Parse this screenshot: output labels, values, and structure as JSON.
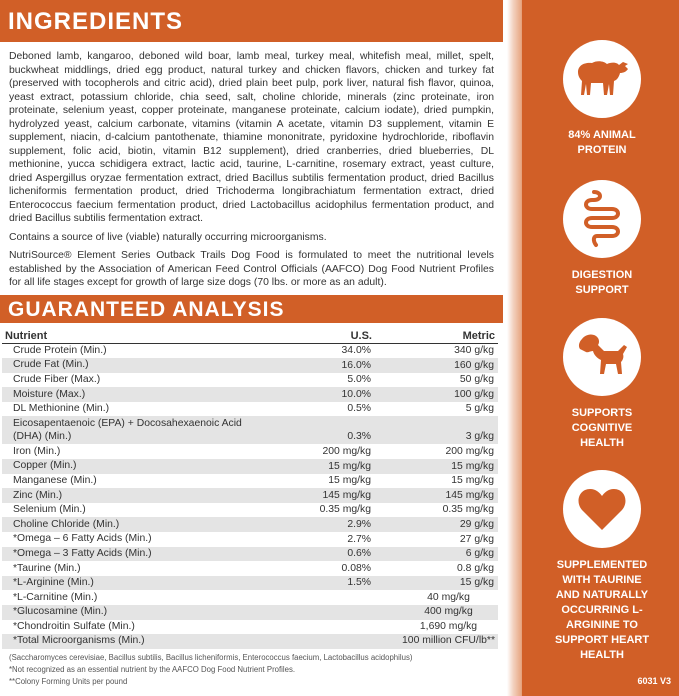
{
  "ingredients": {
    "title": "INGREDIENTS",
    "text": "Deboned lamb, kangaroo, deboned wild boar, lamb meal, turkey meal, whitefish meal, millet, spelt, buckwheat middlings, dried egg product, natural turkey and chicken flavors, chicken and turkey fat (preserved with tocopherols and citric acid), dried plain beet pulp, pork liver, natural fish flavor, quinoa, yeast extract, potassium chloride, chia seed, salt, choline chloride, minerals (zinc proteinate, iron proteinate, selenium yeast, copper proteinate, manganese proteinate, calcium iodate), dried pumpkin, hydrolyzed yeast, calcium carbonate, vitamins (vitamin A acetate, vitamin D3 supplement, vitamin E supplement, niacin, d-calcium pantothenate, thiamine mononitrate, pyridoxine hydrochloride, riboflavin supplement, folic acid, biotin, vitamin B12 supplement), dried cranberries, dried blueberries, DL methionine, yucca schidigera extract, lactic acid, taurine, L-carnitine, rosemary extract, yeast culture, dried Aspergillus oryzae fermentation extract, dried Bacillus subtilis fermentation product, dried Bacillus licheniformis fermentation product, dried Trichoderma longibrachiatum fermentation extract, dried Enterococcus faecium fermentation product, dried Lactobacillus acidophilus fermentation product, and dried Bacillus subtilis fermentation extract.",
    "note1": "Contains a source of live (viable) naturally occurring microorganisms.",
    "note2": "NutriSource® Element Series Outback Trails Dog Food is formulated to meet the nutritional levels established by the Association of American Feed Control Officials (AAFCO) Dog Food Nutrient Profiles for all life stages except for growth of large size dogs (70 lbs. or more as an adult)."
  },
  "analysis": {
    "title": "GUARANTEED ANALYSIS",
    "headers": [
      "Nutrient",
      "U.S.",
      "Metric"
    ],
    "rows": [
      [
        "Crude Protein (Min.)",
        "34.0%",
        "340 g/kg"
      ],
      [
        "Crude Fat (Min.)",
        "16.0%",
        "160 g/kg"
      ],
      [
        "Crude Fiber (Max.)",
        "5.0%",
        "50 g/kg"
      ],
      [
        "Moisture (Max.)",
        "10.0%",
        "100 g/kg"
      ],
      [
        "DL Methionine (Min.)",
        "0.5%",
        "5 g/kg"
      ],
      [
        "Eicosapentaenoic (EPA) + Docosahexaenoic Acid (DHA) (Min.)",
        "0.3%",
        "3 g/kg"
      ],
      [
        "Iron (Min.)",
        "200 mg/kg",
        "200 mg/kg"
      ],
      [
        "Copper (Min.)",
        "15 mg/kg",
        "15 mg/kg"
      ],
      [
        "Manganese (Min.)",
        "15 mg/kg",
        "15 mg/kg"
      ],
      [
        "Zinc (Min.)",
        "145 mg/kg",
        "145 mg/kg"
      ],
      [
        "Selenium (Min.)",
        "0.35 mg/kg",
        "0.35 mg/kg"
      ],
      [
        "Choline Chloride (Min.)",
        "2.9%",
        "29 g/kg"
      ],
      [
        "*Omega – 6 Fatty Acids (Min.)",
        "2.7%",
        "27 g/kg"
      ],
      [
        "*Omega – 3 Fatty Acids (Min.)",
        "0.6%",
        "6 g/kg"
      ],
      [
        "*Taurine (Min.)",
        "0.08%",
        "0.8 g/kg"
      ],
      [
        "*L-Arginine (Min.)",
        "1.5%",
        "15 g/kg"
      ]
    ],
    "merged_rows": [
      [
        "*L-Carnitine (Min.)",
        "40 mg/kg"
      ],
      [
        "*Glucosamine (Min.)",
        "400 mg/kg"
      ],
      [
        "*Chondroitin Sulfate (Min.)",
        "1,690 mg/kg"
      ],
      [
        "*Total Microorganisms (Min.)",
        "100 million CFU/lb**"
      ]
    ],
    "footnotes": [
      "(Saccharomyces cerevisiae, Bacillus subtilis, Bacillus licheniformis, Enterococcus faecium, Lactobacillus acidophilus)",
      "*Not recognized as an essential nutrient by the AAFCO Dog Food Nutrient Profiles.",
      "**Colony Forming Units per pound"
    ]
  },
  "features": [
    {
      "label": "84% ANIMAL PROTEIN",
      "icon": "lamb-icon"
    },
    {
      "label": "DIGESTION SUPPORT",
      "icon": "intestine-icon"
    },
    {
      "label": "SUPPORTS COGNITIVE HEALTH",
      "icon": "puppy-icon"
    },
    {
      "label": "SUPPLEMENTED WITH TAURINE AND NATURALLY OCCURRING L-ARGININE TO SUPPORT HEART HEALTH",
      "icon": "heart-icon"
    }
  ],
  "code": "6031 V3",
  "colors": {
    "accent": "#d15f27",
    "row_alt": "#e4e4e4"
  }
}
